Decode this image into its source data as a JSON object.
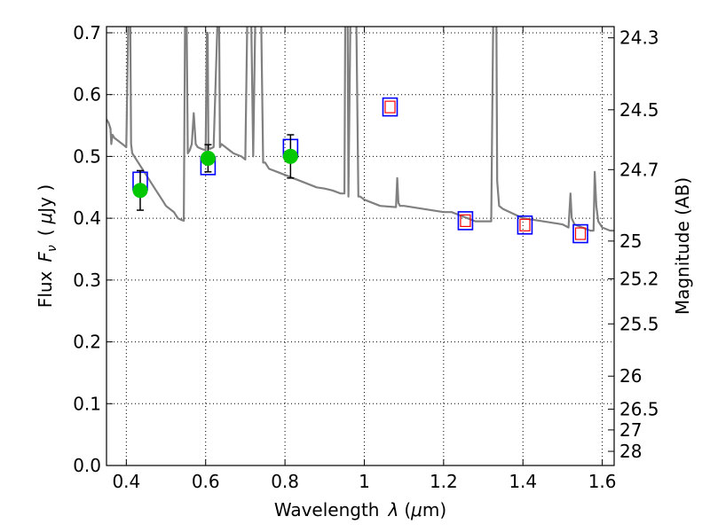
{
  "chart_data": {
    "type": "scatter",
    "xlabel_prefix": "Wavelength",
    "xlabel_symbol": "λ",
    "xlabel_unit_open": "(",
    "xlabel_unit_mu": "μ",
    "xlabel_unit_rest": "m)",
    "ylabel_prefix": "Flux",
    "ylabel_symbol": "F",
    "ylabel_subscript": "ν",
    "ylabel_unit_open": "(",
    "ylabel_unit_mu": "μ",
    "ylabel_unit_rest": "Jy )",
    "y2label": "Magnitude (AB)",
    "xlim": [
      0.35,
      1.63
    ],
    "ylim": [
      0.0,
      0.71
    ],
    "x_ticks": [
      0.4,
      0.6,
      0.8,
      1.0,
      1.2,
      1.4,
      1.6
    ],
    "x_tick_labels": [
      "0.4",
      "0.6",
      "0.8",
      "1",
      "1.2",
      "1.4",
      "1.6"
    ],
    "y_ticks": [
      0.0,
      0.1,
      0.2,
      0.3,
      0.4,
      0.5,
      0.6,
      0.7
    ],
    "y_tick_labels": [
      "0.0",
      "0.1",
      "0.2",
      "0.3",
      "0.4",
      "0.5",
      "0.6",
      "0.7"
    ],
    "y2_ticks": [
      24.3,
      24.5,
      24.7,
      25,
      25.2,
      25.5,
      26,
      26.5,
      27,
      28
    ],
    "y2_tick_labels": [
      "24.3",
      "24.5",
      "24.7",
      "25",
      "25.2",
      "25.5",
      "26",
      "26.5",
      "27",
      "28"
    ],
    "grid": true,
    "colors": {
      "model": "#808080",
      "observed_marker": "#00c800",
      "errorbar": "#000000",
      "model_box": "#0000ff",
      "model_box_inner": "#ff0000"
    },
    "observed": [
      {
        "x": 0.435,
        "y": 0.445,
        "yerr": 0.032
      },
      {
        "x": 0.606,
        "y": 0.497,
        "yerr": 0.022
      },
      {
        "x": 0.814,
        "y": 0.5,
        "yerr": 0.035
      }
    ],
    "model_photometry": [
      {
        "x": 0.435,
        "y": 0.46,
        "inner": false
      },
      {
        "x": 0.606,
        "y": 0.485,
        "inner": false
      },
      {
        "x": 0.814,
        "y": 0.513,
        "inner": false
      },
      {
        "x": 1.065,
        "y": 0.58,
        "inner": true
      },
      {
        "x": 1.255,
        "y": 0.396,
        "inner": true
      },
      {
        "x": 1.405,
        "y": 0.389,
        "inner": true
      },
      {
        "x": 1.545,
        "y": 0.375,
        "inner": true
      }
    ],
    "model_sed": {
      "x": [
        0.35,
        0.355,
        0.36,
        0.362,
        0.365,
        0.37,
        0.38,
        0.39,
        0.4,
        0.405,
        0.408,
        0.41,
        0.412,
        0.415,
        0.42,
        0.43,
        0.45,
        0.47,
        0.49,
        0.5,
        0.51,
        0.52,
        0.53,
        0.54,
        0.545,
        0.548,
        0.55,
        0.552,
        0.555,
        0.56,
        0.565,
        0.57,
        0.575,
        0.58,
        0.59,
        0.6,
        0.603,
        0.605,
        0.607,
        0.61,
        0.62,
        0.63,
        0.632,
        0.634,
        0.636,
        0.64,
        0.65,
        0.67,
        0.69,
        0.7,
        0.705,
        0.71,
        0.712,
        0.715,
        0.72,
        0.725,
        0.73,
        0.735,
        0.74,
        0.745,
        0.75,
        0.76,
        0.78,
        0.8,
        0.82,
        0.84,
        0.86,
        0.88,
        0.9,
        0.92,
        0.94,
        0.95,
        0.952,
        0.955,
        0.958,
        0.96,
        0.965,
        0.97,
        0.975,
        0.98,
        0.985,
        0.99,
        1.0,
        1.02,
        1.04,
        1.08,
        1.083,
        1.086,
        1.09,
        1.1,
        1.15,
        1.2,
        1.22,
        1.24,
        1.26,
        1.28,
        1.3,
        1.32,
        1.325,
        1.328,
        1.33,
        1.333,
        1.335,
        1.34,
        1.35,
        1.4,
        1.45,
        1.5,
        1.515,
        1.52,
        1.523,
        1.53,
        1.55,
        1.57,
        1.578,
        1.581,
        1.585,
        1.59,
        1.6,
        1.62,
        1.63
      ],
      "y": [
        0.56,
        0.555,
        0.545,
        0.52,
        0.535,
        0.53,
        0.525,
        0.52,
        0.515,
        0.72,
        0.72,
        0.72,
        0.52,
        0.505,
        0.5,
        0.49,
        0.47,
        0.45,
        0.43,
        0.42,
        0.415,
        0.41,
        0.4,
        0.397,
        0.396,
        0.72,
        0.72,
        0.72,
        0.505,
        0.51,
        0.52,
        0.57,
        0.52,
        0.515,
        0.512,
        0.51,
        0.7,
        0.7,
        0.515,
        0.512,
        0.515,
        0.72,
        0.72,
        0.72,
        0.515,
        0.52,
        0.515,
        0.505,
        0.5,
        0.495,
        0.72,
        0.72,
        0.72,
        0.72,
        0.5,
        0.72,
        0.72,
        0.72,
        0.72,
        0.49,
        0.49,
        0.48,
        0.475,
        0.47,
        0.465,
        0.46,
        0.455,
        0.45,
        0.448,
        0.445,
        0.44,
        0.44,
        0.72,
        0.72,
        0.72,
        0.435,
        0.72,
        0.72,
        0.72,
        0.72,
        0.435,
        0.435,
        0.43,
        0.425,
        0.42,
        0.418,
        0.465,
        0.425,
        0.42,
        0.42,
        0.415,
        0.41,
        0.41,
        0.405,
        0.4,
        0.395,
        0.395,
        0.395,
        0.72,
        0.72,
        0.72,
        0.72,
        0.46,
        0.42,
        0.415,
        0.4,
        0.395,
        0.39,
        0.385,
        0.44,
        0.4,
        0.39,
        0.385,
        0.38,
        0.38,
        0.475,
        0.42,
        0.395,
        0.385,
        0.38,
        0.38
      ]
    }
  }
}
